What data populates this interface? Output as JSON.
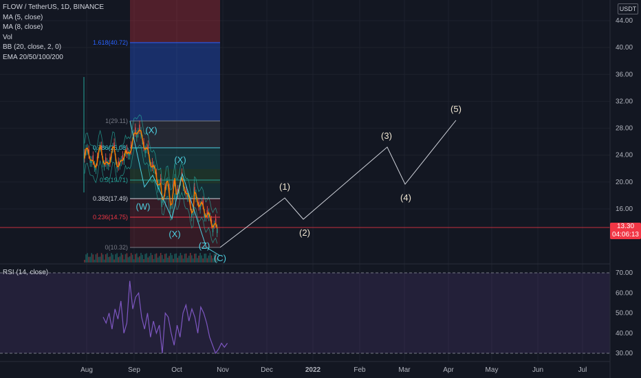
{
  "header": {
    "symbol_line": "FLOW / TetherUS, 1D, BINANCE",
    "indicators": [
      "MA (5, close)",
      "MA (8, close)",
      "Vol",
      "BB (20, close, 2, 0)",
      "EMA 20/50/100/200"
    ]
  },
  "currency": "USDT",
  "price_axis": [
    "44.00",
    "40.00",
    "36.00",
    "32.00",
    "28.00",
    "24.00",
    "20.00",
    "16.00",
    "13.30",
    "04:06:13"
  ],
  "price_ticks": [
    "44.00",
    "40.00",
    "36.00",
    "32.00",
    "28.00",
    "24.00",
    "20.00",
    "16.00"
  ],
  "current_price": {
    "value": "13.30",
    "countdown": "04:06:13",
    "color": "#f23645"
  },
  "fib_levels": [
    {
      "label": "1.618(40.72)",
      "price": 40.72,
      "color": "#2962ff"
    },
    {
      "label": "1(29.11)",
      "price": 29.11,
      "color": "#787b86"
    },
    {
      "label": "0.786(25.08)",
      "price": 25.08,
      "color": "#4dd0e1"
    },
    {
      "label": "0.5(19.71)",
      "price": 19.71,
      "color": "#26a69a"
    },
    {
      "label": "0.382(17.49)",
      "price": 17.49,
      "color": "#d1d4dc"
    },
    {
      "label": "0.236(14.75)",
      "price": 14.75,
      "color": "#f23645"
    },
    {
      "label": "0(10.32)",
      "price": 10.32,
      "color": "#787b86"
    }
  ],
  "wave_labels": {
    "projection": [
      "(1)",
      "(2)",
      "(3)",
      "(4)",
      "(5)"
    ],
    "corrective": [
      "(X)",
      "(X)",
      "(W)",
      "(X)",
      "(Z)",
      "(C)"
    ]
  },
  "rsi": {
    "label": "RSI (14, close)",
    "ticks": [
      "70.00",
      "60.00",
      "50.00",
      "40.00",
      "30.00"
    ],
    "upper": 70,
    "lower": 30
  },
  "time_axis": [
    "Aug",
    "Sep",
    "Oct",
    "Nov",
    "Dec",
    "2022",
    "Feb",
    "Mar",
    "Apr",
    "May",
    "Jun",
    "Jul"
  ],
  "colors": {
    "background": "#131722",
    "fib_red": "#f23645",
    "fib_blue": "#2962ff",
    "rsi_band": "#7e57c2",
    "ma_orange": "#f57c00",
    "accent_teal": "#4dd0e1"
  },
  "chart_data": {
    "type": "line",
    "title": "FLOW / TetherUS, 1D, BINANCE",
    "projection_path": [
      {
        "x": "2021-10-29",
        "y": 10.3
      },
      {
        "x": "2021-12-10",
        "y": 17.7
      },
      {
        "x": "2021-12-24",
        "y": 14.3
      },
      {
        "x": "2022-02-20",
        "y": 25.0
      },
      {
        "x": "2022-03-04",
        "y": 19.8
      },
      {
        "x": "2022-04-20",
        "y": 29.3
      }
    ],
    "ylim": [
      9,
      45
    ]
  }
}
